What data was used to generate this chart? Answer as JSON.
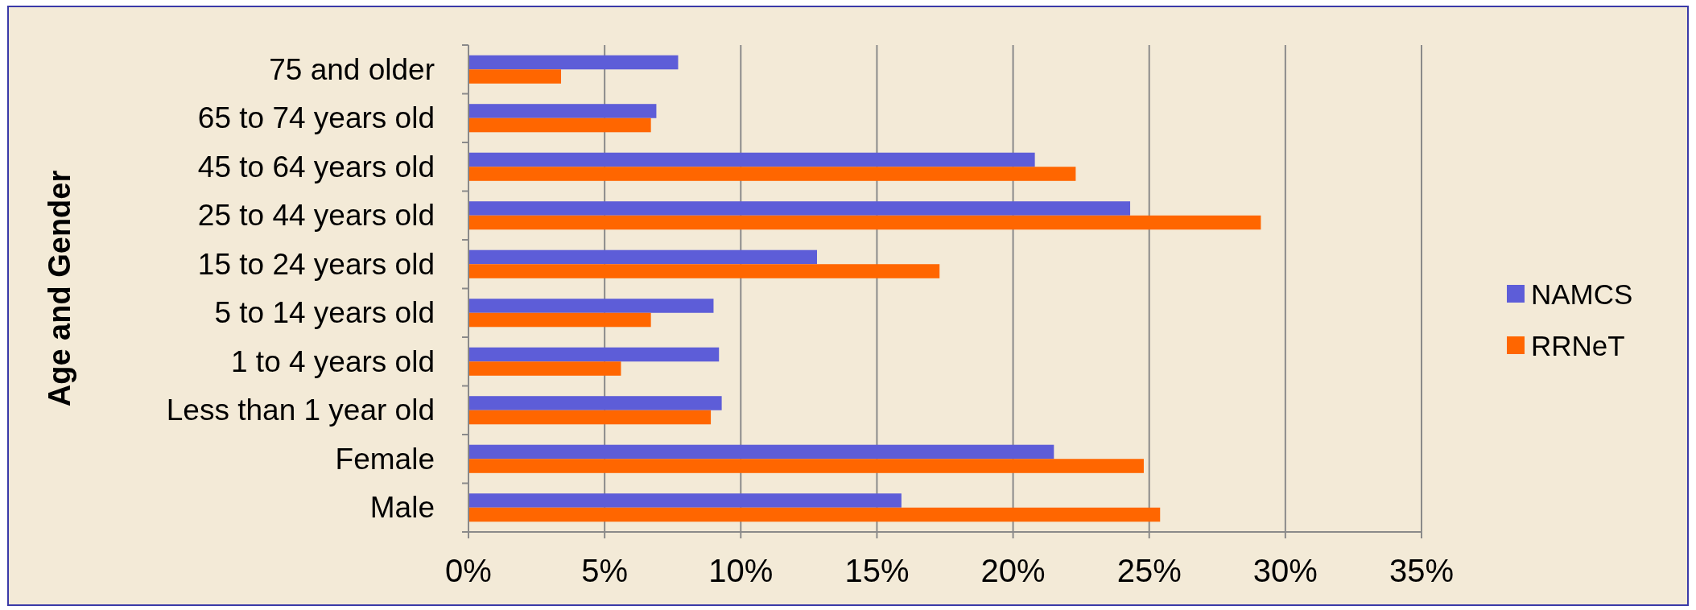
{
  "chart_data": {
    "type": "bar",
    "orientation": "horizontal",
    "ylabel": "Age and Gender",
    "categories": [
      "75 and older",
      "65 to 74 years old",
      "45 to 64 years old",
      "25 to 44 years old",
      "15 to 24 years old",
      "5 to 14 years old",
      "1 to 4 years old",
      "Less than 1 year old",
      "Female",
      "Male"
    ],
    "series": [
      {
        "name": "NAMCS",
        "color": "#5d5dd8",
        "values": [
          7.7,
          6.9,
          20.8,
          24.3,
          12.8,
          9.0,
          9.2,
          9.3,
          21.5,
          15.9
        ]
      },
      {
        "name": "RRNeT",
        "color": "#ff6600",
        "values": [
          3.4,
          6.7,
          22.3,
          29.1,
          17.3,
          6.7,
          5.6,
          8.9,
          24.8,
          25.4
        ]
      }
    ],
    "xlim": [
      0,
      35
    ],
    "xticks": [
      {
        "value": 0,
        "label": "0%"
      },
      {
        "value": 5,
        "label": "5%"
      },
      {
        "value": 10,
        "label": "10%"
      },
      {
        "value": 15,
        "label": "15%"
      },
      {
        "value": 20,
        "label": "20%"
      },
      {
        "value": 25,
        "label": "25%"
      },
      {
        "value": 30,
        "label": "30%"
      },
      {
        "value": 35,
        "label": "35%"
      }
    ],
    "grid": "x",
    "legend": "right"
  }
}
